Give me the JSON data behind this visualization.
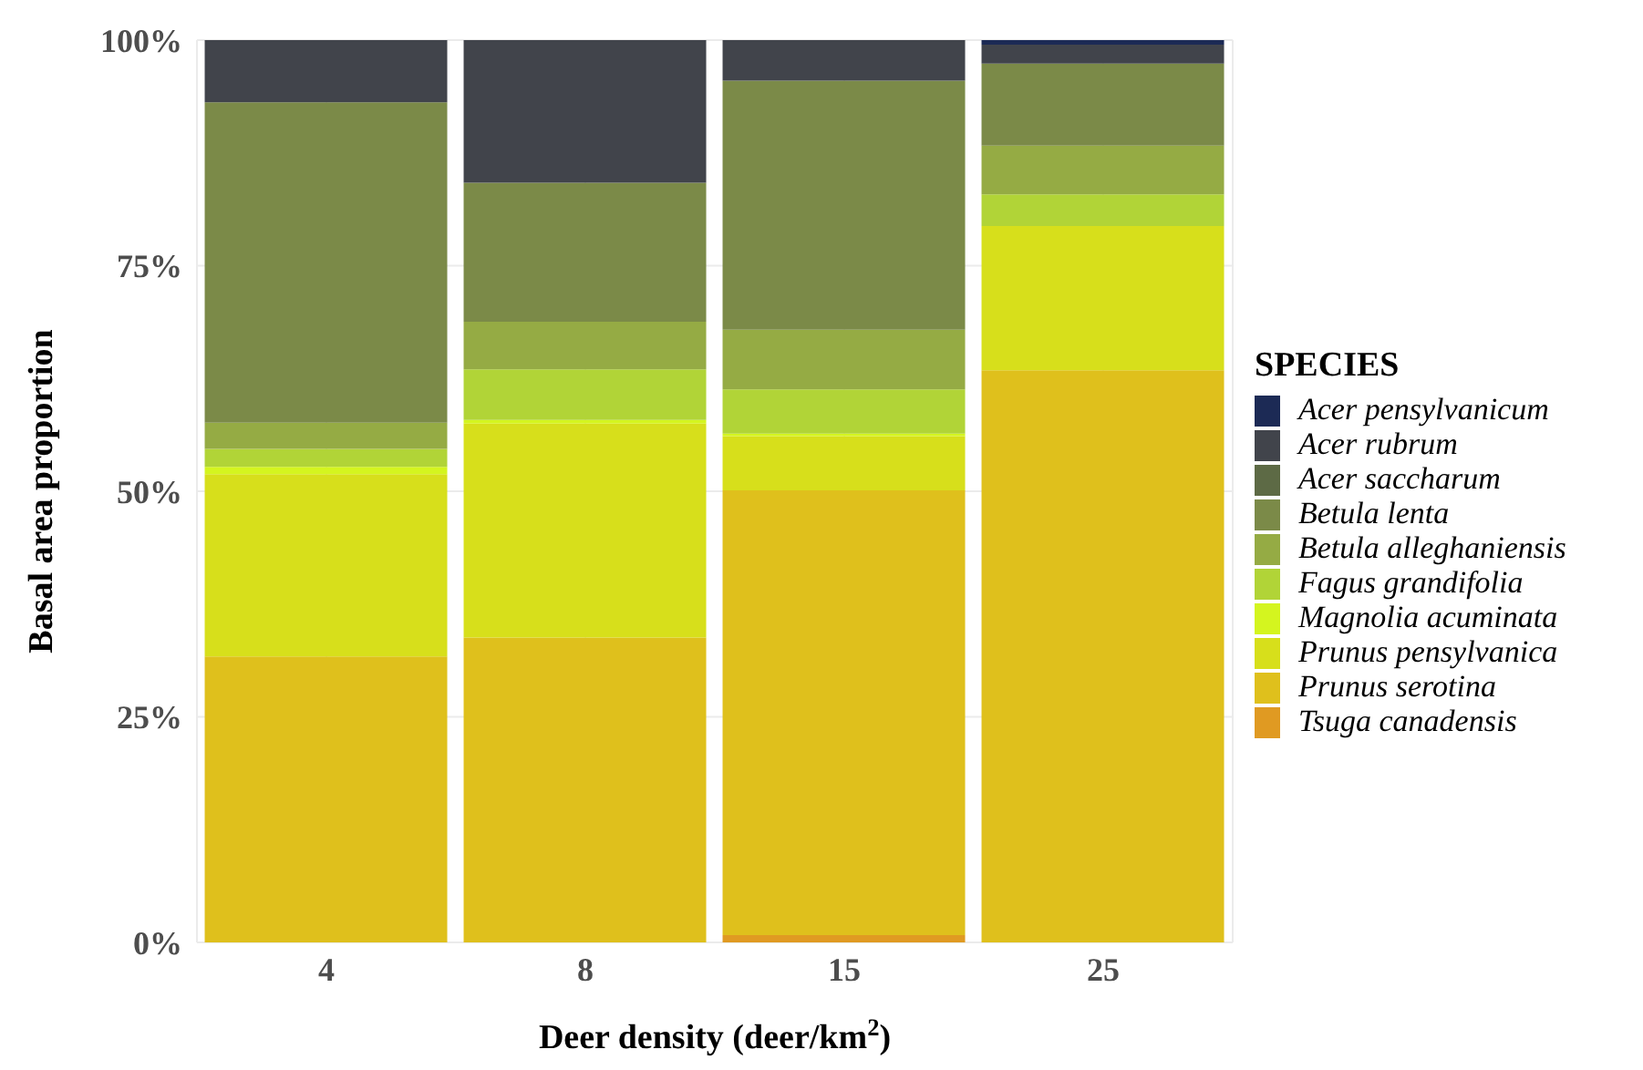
{
  "chart_data": {
    "type": "bar",
    "stacked": true,
    "xlabel": "Deer density (deer/km$^{2}$)",
    "ylabel": "Basal area proportion",
    "legend_title": "SPECIES",
    "categories": [
      "4",
      "8",
      "15",
      "25"
    ],
    "series": [
      {
        "name": "Tsuga canadensis",
        "color": "#e09a22",
        "values": [
          0,
          0,
          0.8,
          0
        ]
      },
      {
        "name": "Prunus serotina",
        "color": "#dfc01c",
        "values": [
          31.7,
          33.8,
          49.3,
          63.4
        ]
      },
      {
        "name": "Prunus pensylvanica",
        "color": "#d7df1b",
        "values": [
          20.2,
          23.7,
          6.0,
          16.0
        ]
      },
      {
        "name": "Magnolia acuminata",
        "color": "#d4f51f",
        "values": [
          0.8,
          0.4,
          0.3,
          0
        ]
      },
      {
        "name": "Fagus grandifolia",
        "color": "#b1d437",
        "values": [
          2.0,
          5.6,
          4.9,
          3.5
        ]
      },
      {
        "name": "Betula alleghaniensis",
        "color": "#95ab44",
        "values": [
          2.9,
          5.3,
          6.6,
          5.4
        ]
      },
      {
        "name": "Betula lenta",
        "color": "#7b8a48",
        "values": [
          35.5,
          15.4,
          27.6,
          9.1
        ]
      },
      {
        "name": "Acer saccharum",
        "color": "#5d6a45",
        "values": [
          0,
          0,
          0,
          0
        ]
      },
      {
        "name": "Acer rubrum",
        "color": "#41444b",
        "values": [
          6.9,
          15.8,
          4.5,
          2.1
        ]
      },
      {
        "name": "Acer pensylvanicum",
        "color": "#1c2a55",
        "values": [
          0,
          0,
          0,
          0.5
        ]
      }
    ],
    "ylim": [
      0,
      100
    ],
    "yticks": [
      {
        "value": 0,
        "label": "0%"
      },
      {
        "value": 25,
        "label": "25%"
      },
      {
        "value": 50,
        "label": "50%"
      },
      {
        "value": 75,
        "label": "75%"
      },
      {
        "value": 100,
        "label": "100%"
      }
    ],
    "grid": true,
    "legend": "right"
  }
}
